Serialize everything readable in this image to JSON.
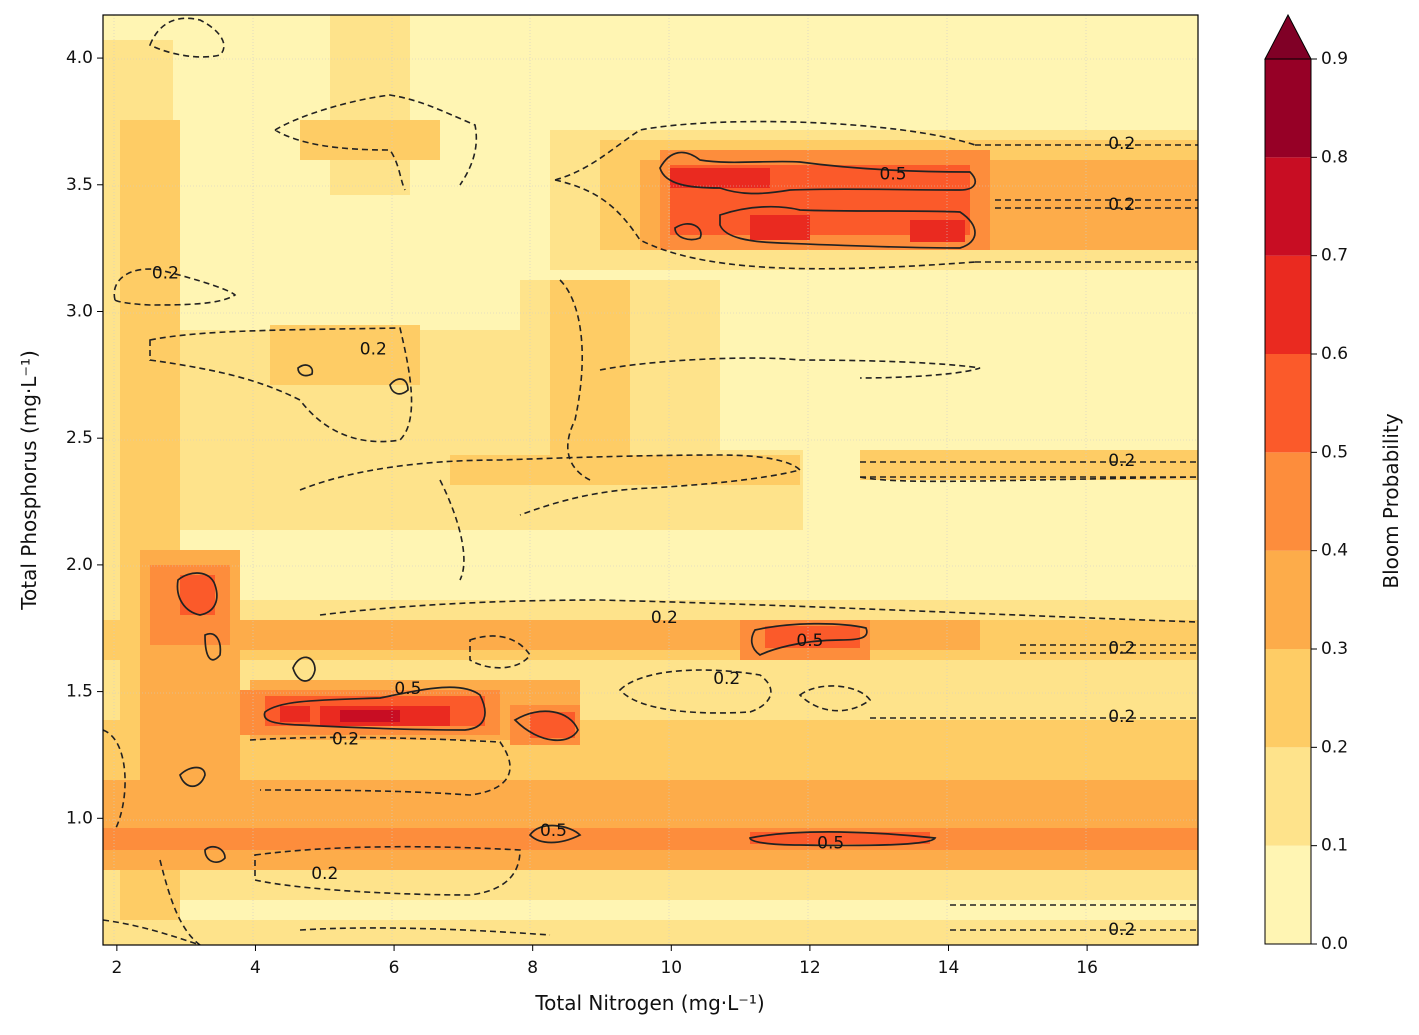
{
  "chart_data": {
    "type": "heatmap",
    "subtype": "filled contour with contour lines",
    "xlabel": "Total Nitrogen (mg·L⁻¹)",
    "ylabel": "Total Phosphorus (mg·L⁻¹)",
    "xlim": [
      1.8,
      17.6
    ],
    "ylim": [
      0.5,
      4.17
    ],
    "x_ticks": [
      2,
      4,
      6,
      8,
      10,
      12,
      14,
      16
    ],
    "x_tick_labels": [
      "2",
      "4",
      "6",
      "8",
      "10",
      "12",
      "14",
      "16"
    ],
    "y_ticks": [
      1.0,
      1.5,
      2.0,
      2.5,
      3.0,
      3.5,
      4.0
    ],
    "y_tick_labels": [
      "1.0",
      "1.5",
      "2.0",
      "2.5",
      "3.0",
      "3.5",
      "4.0"
    ],
    "grid": true,
    "colorbar": {
      "label": "Bloom Probability",
      "levels": [
        0.0,
        0.1,
        0.2,
        0.3,
        0.4,
        0.5,
        0.6,
        0.7,
        0.8,
        0.9
      ],
      "level_labels": [
        "0.0",
        "0.1",
        "0.2",
        "0.3",
        "0.4",
        "0.5",
        "0.6",
        "0.7",
        "0.8",
        "0.9"
      ],
      "colors": [
        "#fff5b3",
        "#fee38b",
        "#fecc65",
        "#fdac4a",
        "#fd8d3c",
        "#fb5a2a",
        "#ea2a20",
        "#c80d23",
        "#960026"
      ],
      "extend_color": "#800026",
      "extend": "max"
    },
    "contour_levels": [
      {
        "level": 0.2,
        "style": "dashed"
      },
      {
        "level": 0.5,
        "style": "solid"
      }
    ],
    "high_probability_regions": [
      {
        "tn": [
          10.1,
          14.4
        ],
        "tp": [
          3.28,
          3.58
        ],
        "peak": 0.7
      },
      {
        "tn": [
          4.2,
          7.4
        ],
        "tp": [
          1.36,
          1.5
        ],
        "peak": 0.75
      },
      {
        "tn": [
          11.4,
          12.8
        ],
        "tp": [
          1.66,
          1.76
        ],
        "peak": 0.55
      },
      {
        "tn": [
          7.9,
          8.6
        ],
        "tp": [
          1.32,
          1.42
        ],
        "peak": 0.6
      },
      {
        "tn": [
          11.2,
          13.8
        ],
        "tp": [
          0.9,
          0.95
        ],
        "peak": 0.55
      },
      {
        "tn": [
          2.9,
          3.5
        ],
        "tp": [
          1.75,
          1.97
        ],
        "peak": 0.6
      }
    ],
    "contour_labels": [
      {
        "text": "0.2",
        "x": 16.5,
        "y": 3.66
      },
      {
        "text": "0.5",
        "x": 13.2,
        "y": 3.54
      },
      {
        "text": "0.2",
        "x": 16.5,
        "y": 3.42
      },
      {
        "text": "0.2",
        "x": 2.7,
        "y": 3.15
      },
      {
        "text": "0.2",
        "x": 5.7,
        "y": 2.85
      },
      {
        "text": "0.2",
        "x": 16.5,
        "y": 2.41
      },
      {
        "text": "0.2",
        "x": 9.9,
        "y": 1.79
      },
      {
        "text": "0.5",
        "x": 12.0,
        "y": 1.7
      },
      {
        "text": "0.2",
        "x": 16.5,
        "y": 1.67
      },
      {
        "text": "0.2",
        "x": 10.8,
        "y": 1.55
      },
      {
        "text": "0.5",
        "x": 6.2,
        "y": 1.51
      },
      {
        "text": "0.2",
        "x": 16.5,
        "y": 1.4
      },
      {
        "text": "0.2",
        "x": 5.3,
        "y": 1.31
      },
      {
        "text": "0.5",
        "x": 8.3,
        "y": 0.95
      },
      {
        "text": "0.5",
        "x": 12.3,
        "y": 0.9
      },
      {
        "text": "0.2",
        "x": 5.0,
        "y": 0.78
      },
      {
        "text": "0.2",
        "x": 16.5,
        "y": 0.56
      }
    ]
  }
}
